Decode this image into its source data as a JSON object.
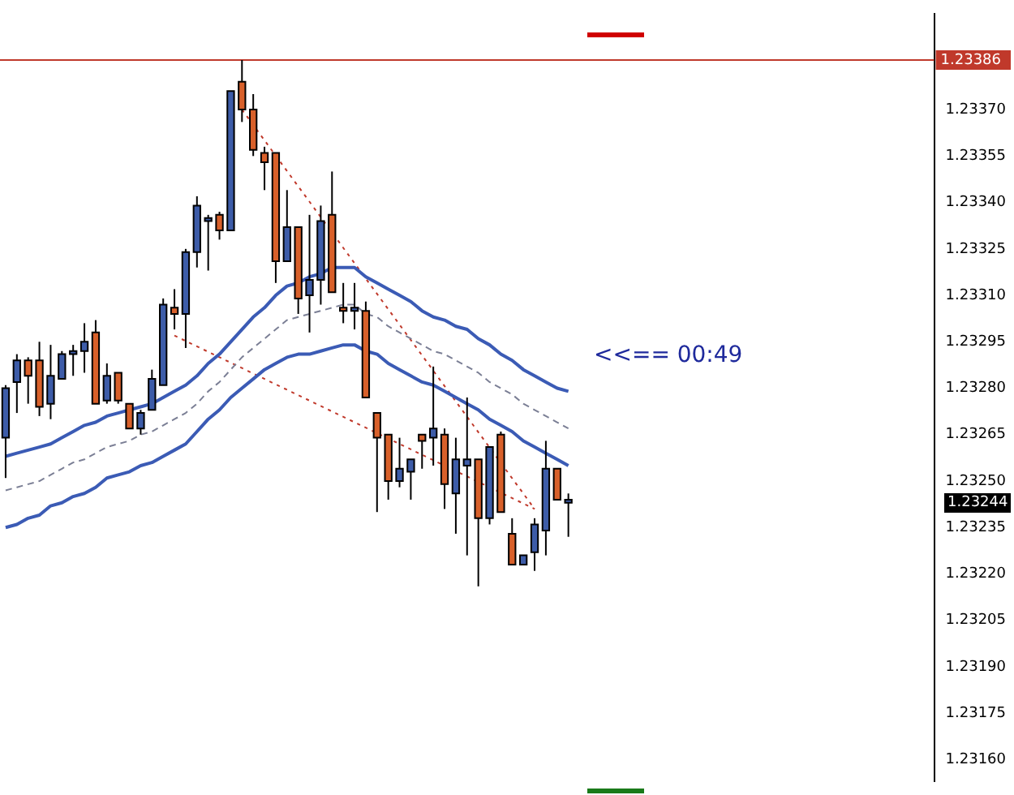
{
  "chart_data": {
    "type": "candlestick",
    "categories": [
      null,
      null,
      null,
      null,
      null,
      null,
      null,
      null,
      null,
      null,
      null,
      null,
      null,
      null,
      null,
      null,
      null,
      null,
      null,
      null,
      null,
      null,
      null,
      null,
      null,
      null,
      null,
      null,
      null,
      null,
      null,
      null,
      null,
      null,
      null,
      null,
      null,
      null,
      null,
      null,
      null,
      null,
      null,
      null,
      null,
      null,
      null,
      null,
      null,
      null,
      null,
      null,
      null,
      null,
      null,
      null,
      null,
      null,
      null,
      null,
      null,
      null,
      null,
      null,
      null,
      null,
      null,
      null,
      null,
      null,
      null,
      null,
      null,
      null,
      null,
      null,
      null,
      null,
      null,
      null,
      null,
      null,
      null
    ],
    "ohlc": [
      [
        1.23264,
        1.23281,
        1.23251,
        1.2328
      ],
      [
        1.23282,
        1.23291,
        1.23272,
        1.23289
      ],
      [
        1.23289,
        1.2329,
        1.23275,
        1.23284
      ],
      [
        1.23289,
        1.23295,
        1.23271,
        1.23274
      ],
      [
        1.23275,
        1.23294,
        1.2327,
        1.23284
      ],
      [
        1.23283,
        1.23292,
        1.23283,
        1.23291
      ],
      [
        1.23291,
        1.23294,
        1.23284,
        1.23292
      ],
      [
        1.23292,
        1.23301,
        1.23285,
        1.23295
      ],
      [
        1.23298,
        1.23302,
        1.23275,
        1.23275
      ],
      [
        1.23276,
        1.23288,
        1.23275,
        1.23284
      ],
      [
        1.23285,
        1.23285,
        1.23275,
        1.23276
      ],
      [
        1.23275,
        1.23275,
        1.23267,
        1.23267
      ],
      [
        1.23267,
        1.23273,
        1.23265,
        1.23272
      ],
      [
        1.23273,
        1.23286,
        1.23273,
        1.23283
      ],
      [
        1.23281,
        1.23309,
        1.23281,
        1.23307
      ],
      [
        1.23306,
        1.23312,
        1.23299,
        1.23304
      ],
      [
        1.23304,
        1.23325,
        1.23293,
        1.23324
      ],
      [
        1.23324,
        1.23342,
        1.23319,
        1.23339
      ],
      [
        1.23334,
        1.23336,
        1.23318,
        1.23335
      ],
      [
        1.23336,
        1.23337,
        1.23328,
        1.23331
      ],
      [
        1.23331,
        1.23376,
        1.23331,
        1.23376
      ],
      [
        1.23379,
        1.23386,
        1.23366,
        1.2337
      ],
      [
        1.2337,
        1.23375,
        1.23355,
        1.23357
      ],
      [
        1.23356,
        1.23358,
        1.23344,
        1.23353
      ],
      [
        1.23356,
        1.23356,
        1.23314,
        1.23321
      ],
      [
        1.23321,
        1.23344,
        1.23321,
        1.23332
      ],
      [
        1.23332,
        1.23332,
        1.23304,
        1.23309
      ],
      [
        1.2331,
        1.23336,
        1.23298,
        1.23315
      ],
      [
        1.23315,
        1.23339,
        1.23307,
        1.23334
      ],
      [
        1.23336,
        1.2335,
        1.23311,
        1.23311
      ],
      [
        1.23306,
        1.23314,
        1.23301,
        1.23305
      ],
      [
        1.23305,
        1.23314,
        1.23299,
        1.23306
      ],
      [
        1.23305,
        1.23308,
        1.23277,
        1.23277
      ],
      [
        1.23272,
        1.23272,
        1.2324,
        1.23264
      ],
      [
        1.23265,
        1.23265,
        1.23244,
        1.2325
      ],
      [
        1.2325,
        1.23264,
        1.23248,
        1.23254
      ],
      [
        1.23253,
        1.23257,
        1.23244,
        1.23257
      ],
      [
        1.23265,
        1.23265,
        1.23254,
        1.23263
      ],
      [
        1.23264,
        1.23287,
        1.23255,
        1.23267
      ],
      [
        1.23265,
        1.23267,
        1.23241,
        1.23249
      ],
      [
        1.23246,
        1.23264,
        1.23233,
        1.23257
      ],
      [
        1.23255,
        1.23277,
        1.23226,
        1.23257
      ],
      [
        1.23257,
        1.23257,
        1.23216,
        1.23238
      ],
      [
        1.23238,
        1.23261,
        1.23236,
        1.23261
      ],
      [
        1.23265,
        1.23266,
        1.2324,
        1.2324
      ],
      [
        1.23233,
        1.23238,
        1.23223,
        1.23223
      ],
      [
        1.23223,
        1.23226,
        1.23223,
        1.23226
      ],
      [
        1.23227,
        1.23238,
        1.23221,
        1.23236
      ],
      [
        1.23234,
        1.23263,
        1.23226,
        1.23254
      ],
      [
        1.23254,
        1.23254,
        1.23244,
        1.23244
      ],
      [
        1.23243,
        1.23246,
        1.23232,
        1.23244
      ],
      null,
      null,
      null,
      null,
      null,
      null,
      null,
      null,
      null,
      null,
      null,
      null,
      null,
      null,
      null,
      null,
      null,
      null,
      null,
      null,
      null,
      null,
      null,
      null,
      null,
      null,
      null,
      null,
      null,
      null,
      null,
      null
    ],
    "colors": [
      "#3d5ca8",
      "#3d5ca8",
      "#d8602a",
      "#d8602a",
      "#3d5ca8",
      "#3d5ca8",
      "#3d5ca8",
      "#3d5ca8",
      "#d8602a",
      "#3d5ca8",
      "#d8602a",
      "#d8602a",
      "#3d5ca8",
      "#3d5ca8",
      "#3d5ca8",
      "#d8602a",
      "#3d5ca8",
      "#3d5ca8",
      "#3d5ca8",
      "#d8602a",
      "#3d5ca8",
      "#d8602a",
      "#d8602a",
      "#d8602a",
      "#d8602a",
      "#3d5ca8",
      "#d8602a",
      "#3d5ca8",
      "#3d5ca8",
      "#d8602a",
      "#d8602a",
      "#3d5ca8",
      "#d8602a",
      "#d8602a",
      "#d8602a",
      "#3d5ca8",
      "#3d5ca8",
      "#d8602a",
      "#3d5ca8",
      "#d8602a",
      "#3d5ca8",
      "#3d5ca8",
      "#d8602a",
      "#3d5ca8",
      "#d8602a",
      "#d8602a",
      "#3d5ca8",
      "#3d5ca8",
      "#3d5ca8",
      "#d8602a",
      "#3d5ca8",
      null,
      null,
      null,
      null,
      null,
      null,
      null,
      null,
      null,
      null,
      null,
      null,
      null,
      null,
      null,
      null,
      null,
      null,
      null,
      null,
      null,
      null,
      null,
      null,
      null,
      null,
      null,
      null,
      null,
      null,
      null,
      null
    ],
    "series": [
      {
        "type": "line",
        "color": "#3b5bb5",
        "line_style": "solid",
        "values": [
          1.23258,
          1.23259,
          1.2326,
          1.23261,
          1.23262,
          1.23264,
          1.23266,
          1.23268,
          1.23269,
          1.23271,
          1.23272,
          1.23273,
          1.23274,
          1.23275,
          1.23277,
          1.23279,
          1.23281,
          1.23284,
          1.23288,
          1.23291,
          1.23295,
          1.23299,
          1.23303,
          1.23306,
          1.2331,
          1.23313,
          1.23314,
          1.23316,
          1.23317,
          1.23319,
          1.23319,
          1.23319,
          1.23316,
          1.23314,
          1.23312,
          1.2331,
          1.23308,
          1.23305,
          1.23303,
          1.23302,
          1.233,
          1.23299,
          1.23296,
          1.23294,
          1.23291,
          1.23289,
          1.23286,
          1.23284,
          1.23282,
          1.2328,
          1.23279,
          null,
          null,
          null,
          null,
          null,
          null,
          null,
          null,
          null,
          null,
          null,
          null,
          null,
          null,
          null,
          null,
          null,
          null,
          null,
          null,
          null,
          null,
          null,
          null,
          null,
          null,
          null,
          null,
          null,
          null,
          null,
          null
        ]
      },
      {
        "type": "line",
        "color": "#7b7f95",
        "line_style": "dashed",
        "values": [
          1.23247,
          1.23248,
          1.23249,
          1.2325,
          1.23252,
          1.23254,
          1.23256,
          1.23257,
          1.23259,
          1.23261,
          1.23262,
          1.23263,
          1.23265,
          1.23266,
          1.23268,
          1.2327,
          1.23272,
          1.23275,
          1.23279,
          1.23282,
          1.23286,
          1.2329,
          1.23293,
          1.23296,
          1.23299,
          1.23302,
          1.23303,
          1.23304,
          1.23305,
          1.23306,
          1.23307,
          1.23307,
          1.23304,
          1.23303,
          1.233,
          1.23298,
          1.23296,
          1.23294,
          1.23292,
          1.23291,
          1.23289,
          1.23287,
          1.23285,
          1.23282,
          1.2328,
          1.23278,
          1.23275,
          1.23273,
          1.23271,
          1.23269,
          1.23267,
          null,
          null,
          null,
          null,
          null,
          null,
          null,
          null,
          null,
          null,
          null,
          null,
          null,
          null,
          null,
          null,
          null,
          null,
          null,
          null,
          null,
          null,
          null,
          null,
          null,
          null,
          null,
          null,
          null,
          null,
          null,
          null
        ]
      },
      {
        "type": "line",
        "color": "#3b5bb5",
        "line_style": "solid",
        "values": [
          1.23235,
          1.23236,
          1.23238,
          1.23239,
          1.23242,
          1.23243,
          1.23245,
          1.23246,
          1.23248,
          1.23251,
          1.23252,
          1.23253,
          1.23255,
          1.23256,
          1.23258,
          1.2326,
          1.23262,
          1.23266,
          1.2327,
          1.23273,
          1.23277,
          1.2328,
          1.23283,
          1.23286,
          1.23288,
          1.2329,
          1.23291,
          1.23291,
          1.23292,
          1.23293,
          1.23294,
          1.23294,
          1.23292,
          1.23291,
          1.23288,
          1.23286,
          1.23284,
          1.23282,
          1.23281,
          1.23279,
          1.23277,
          1.23275,
          1.23273,
          1.2327,
          1.23268,
          1.23266,
          1.23263,
          1.23261,
          1.23259,
          1.23257,
          1.23255,
          null,
          null,
          null,
          null,
          null,
          null,
          null,
          null,
          null,
          null,
          null,
          null,
          null,
          null,
          null,
          null,
          null,
          null,
          null,
          null,
          null,
          null,
          null,
          null,
          null,
          null,
          null,
          null,
          null,
          null,
          null,
          null
        ]
      },
      {
        "type": "line",
        "color": "#c0392b",
        "line_style": "dotted",
        "values": [
          null,
          null,
          null,
          null,
          null,
          null,
          null,
          null,
          null,
          null,
          null,
          null,
          null,
          null,
          null,
          null,
          null,
          null,
          null,
          null,
          null,
          1.2337,
          null,
          null,
          null,
          null,
          null,
          null,
          null,
          null,
          null,
          null,
          null,
          null,
          null,
          null,
          null,
          null,
          null,
          null,
          null,
          null,
          null,
          null,
          null,
          null,
          null,
          1.23241,
          null,
          null,
          null,
          null,
          null,
          null,
          null,
          null,
          null,
          null,
          null,
          null,
          null,
          null,
          null,
          null,
          null,
          null,
          null,
          null,
          null,
          null,
          null,
          null,
          null,
          null,
          null,
          null,
          null,
          null,
          null,
          null,
          null,
          null,
          null
        ]
      },
      {
        "type": "line",
        "color": "#c0392b",
        "line_style": "dotted",
        "values": [
          null,
          null,
          null,
          null,
          null,
          null,
          null,
          null,
          null,
          null,
          null,
          null,
          null,
          null,
          null,
          1.23297,
          null,
          null,
          null,
          null,
          null,
          null,
          null,
          null,
          null,
          null,
          null,
          null,
          null,
          null,
          null,
          null,
          null,
          null,
          null,
          null,
          null,
          null,
          null,
          null,
          null,
          null,
          null,
          null,
          null,
          null,
          null,
          1.23241,
          null,
          null,
          null,
          null,
          null,
          null,
          null,
          null,
          null,
          null,
          null,
          null,
          null,
          null,
          null,
          null,
          null,
          null,
          null,
          null,
          null,
          null,
          null,
          null,
          null,
          null,
          null,
          null,
          null,
          null,
          null,
          null,
          null,
          null,
          null
        ]
      }
    ],
    "ylim": [
      1.23153,
      1.23401
    ],
    "yticks": [
      {
        "value": 1.2316,
        "label": "1.23160"
      },
      1.23175,
      {
        "value": 1.2319,
        "label": "1.23190"
      },
      1.23205,
      {
        "value": 1.2322,
        "label": "1.23220"
      },
      1.23235,
      {
        "value": 1.2325,
        "label": "1.23250"
      },
      1.23265,
      {
        "value": 1.2328,
        "label": "1.23280"
      },
      1.23295,
      {
        "value": 1.2331,
        "label": "1.23310"
      },
      1.23325,
      {
        "value": 1.2334,
        "label": "1.23340"
      },
      1.23355,
      {
        "value": 1.2337,
        "label": "1.23370"
      }
    ],
    "ref_lines": [
      {
        "axis": "y",
        "value": 1.23386,
        "label": "1.23386",
        "color": "#c0392b"
      }
    ],
    "annotations": [
      "<<== 00:49",
      "1.23244"
    ],
    "grid": false,
    "legend": false,
    "tick_labels": "y"
  }
}
